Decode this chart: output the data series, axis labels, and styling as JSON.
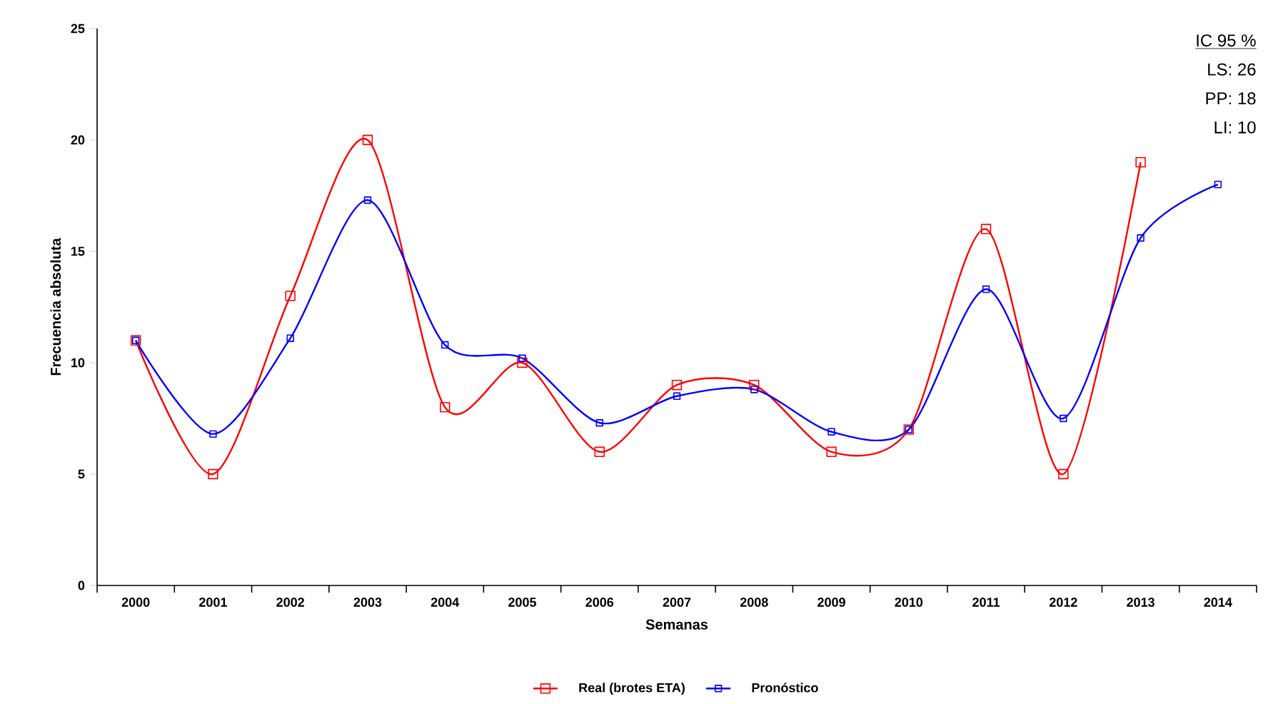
{
  "chart_data": {
    "type": "line",
    "xlabel": "Semanas",
    "ylabel": "Frecuencia absoluta",
    "categories": [
      "2000",
      "2001",
      "2002",
      "2003",
      "2004",
      "2005",
      "2006",
      "2007",
      "2008",
      "2009",
      "2010",
      "2011",
      "2012",
      "2013",
      "2014"
    ],
    "series": [
      {
        "name": "Real (brotes ETA)",
        "color": "#ff0000",
        "values": [
          11,
          5,
          13,
          20,
          8,
          10,
          6,
          9,
          9,
          6,
          7,
          16,
          5,
          19,
          null
        ]
      },
      {
        "name": "Pronóstico",
        "color": "#0000ff",
        "values": [
          11,
          6.8,
          11.1,
          17.3,
          10.8,
          10.2,
          7.3,
          8.5,
          8.8,
          6.9,
          7,
          13.3,
          7.5,
          15.6,
          18
        ]
      }
    ],
    "ylim": [
      0,
      25
    ],
    "yticks": [
      0,
      5,
      10,
      15,
      20,
      25
    ],
    "grid": false,
    "legend": "bottom",
    "marker": "square",
    "line_style": "solid",
    "annotations": [
      "IC 95 %",
      "LS: 26",
      "PP: 18",
      "LI: 10"
    ]
  }
}
